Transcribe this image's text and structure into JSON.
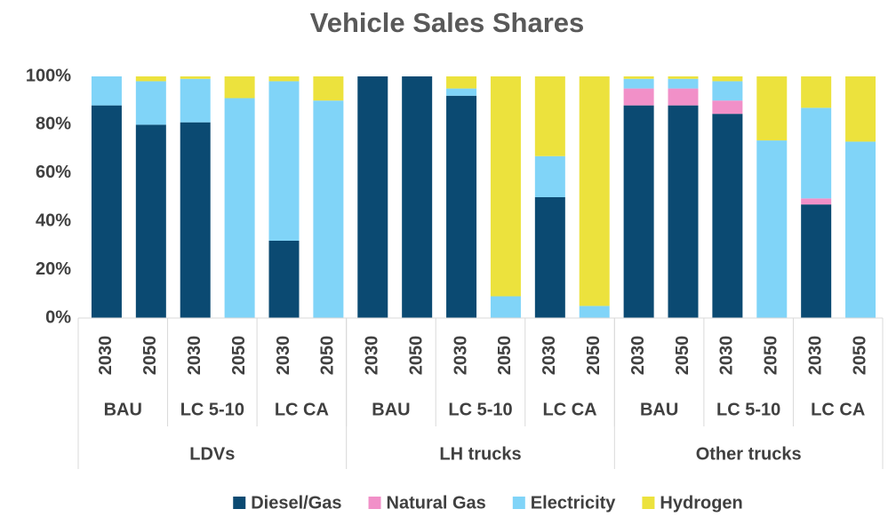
{
  "chart_data": {
    "type": "stacked-bar",
    "title": "Vehicle Sales Shares",
    "categories": [
      "2030",
      "2050",
      "2030",
      "2050",
      "2030",
      "2050",
      "2030",
      "2050",
      "2030",
      "2050",
      "2030",
      "2050",
      "2030",
      "2050",
      "2030",
      "2050",
      "2030",
      "2050"
    ],
    "scenario_groups": [
      "BAU",
      "LC 5-10",
      "LC CA",
      "BAU",
      "LC 5-10",
      "LC CA",
      "BAU",
      "LC 5-10",
      "LC CA"
    ],
    "vehicle_groups": [
      "LDVs",
      "LH trucks",
      "Other trucks"
    ],
    "series": [
      {
        "name": "Diesel/Gas",
        "color": "#0b4a72",
        "values": [
          88,
          80,
          81,
          0,
          32,
          0,
          100,
          100,
          92,
          0,
          50,
          0,
          88,
          88,
          84.5,
          0,
          47,
          0
        ]
      },
      {
        "name": "Natural Gas",
        "color": "#f190c8",
        "values": [
          0,
          0,
          0,
          0,
          0,
          0,
          0,
          0,
          0,
          0,
          0,
          0,
          7,
          7,
          5.5,
          0,
          2.5,
          0
        ]
      },
      {
        "name": "Electricity",
        "color": "#80d4f8",
        "values": [
          12,
          18,
          18,
          91,
          66,
          90,
          0,
          0,
          3,
          9,
          17,
          5,
          4,
          4,
          8,
          73.5,
          37.5,
          73
        ]
      },
      {
        "name": "Hydrogen",
        "color": "#ece23d",
        "values": [
          0,
          2,
          1,
          9,
          2,
          10,
          0,
          0,
          5,
          91,
          33,
          95,
          1,
          1,
          2,
          26.5,
          13,
          27
        ]
      }
    ],
    "ylim": [
      0,
      100
    ],
    "yticks": [
      {
        "value": 0,
        "label": "0%"
      },
      {
        "value": 20,
        "label": "20%"
      },
      {
        "value": 40,
        "label": "40%"
      },
      {
        "value": 60,
        "label": "60%"
      },
      {
        "value": 80,
        "label": "80%"
      },
      {
        "value": 100,
        "label": "100%"
      }
    ],
    "grid": false,
    "legend": "bottom"
  }
}
